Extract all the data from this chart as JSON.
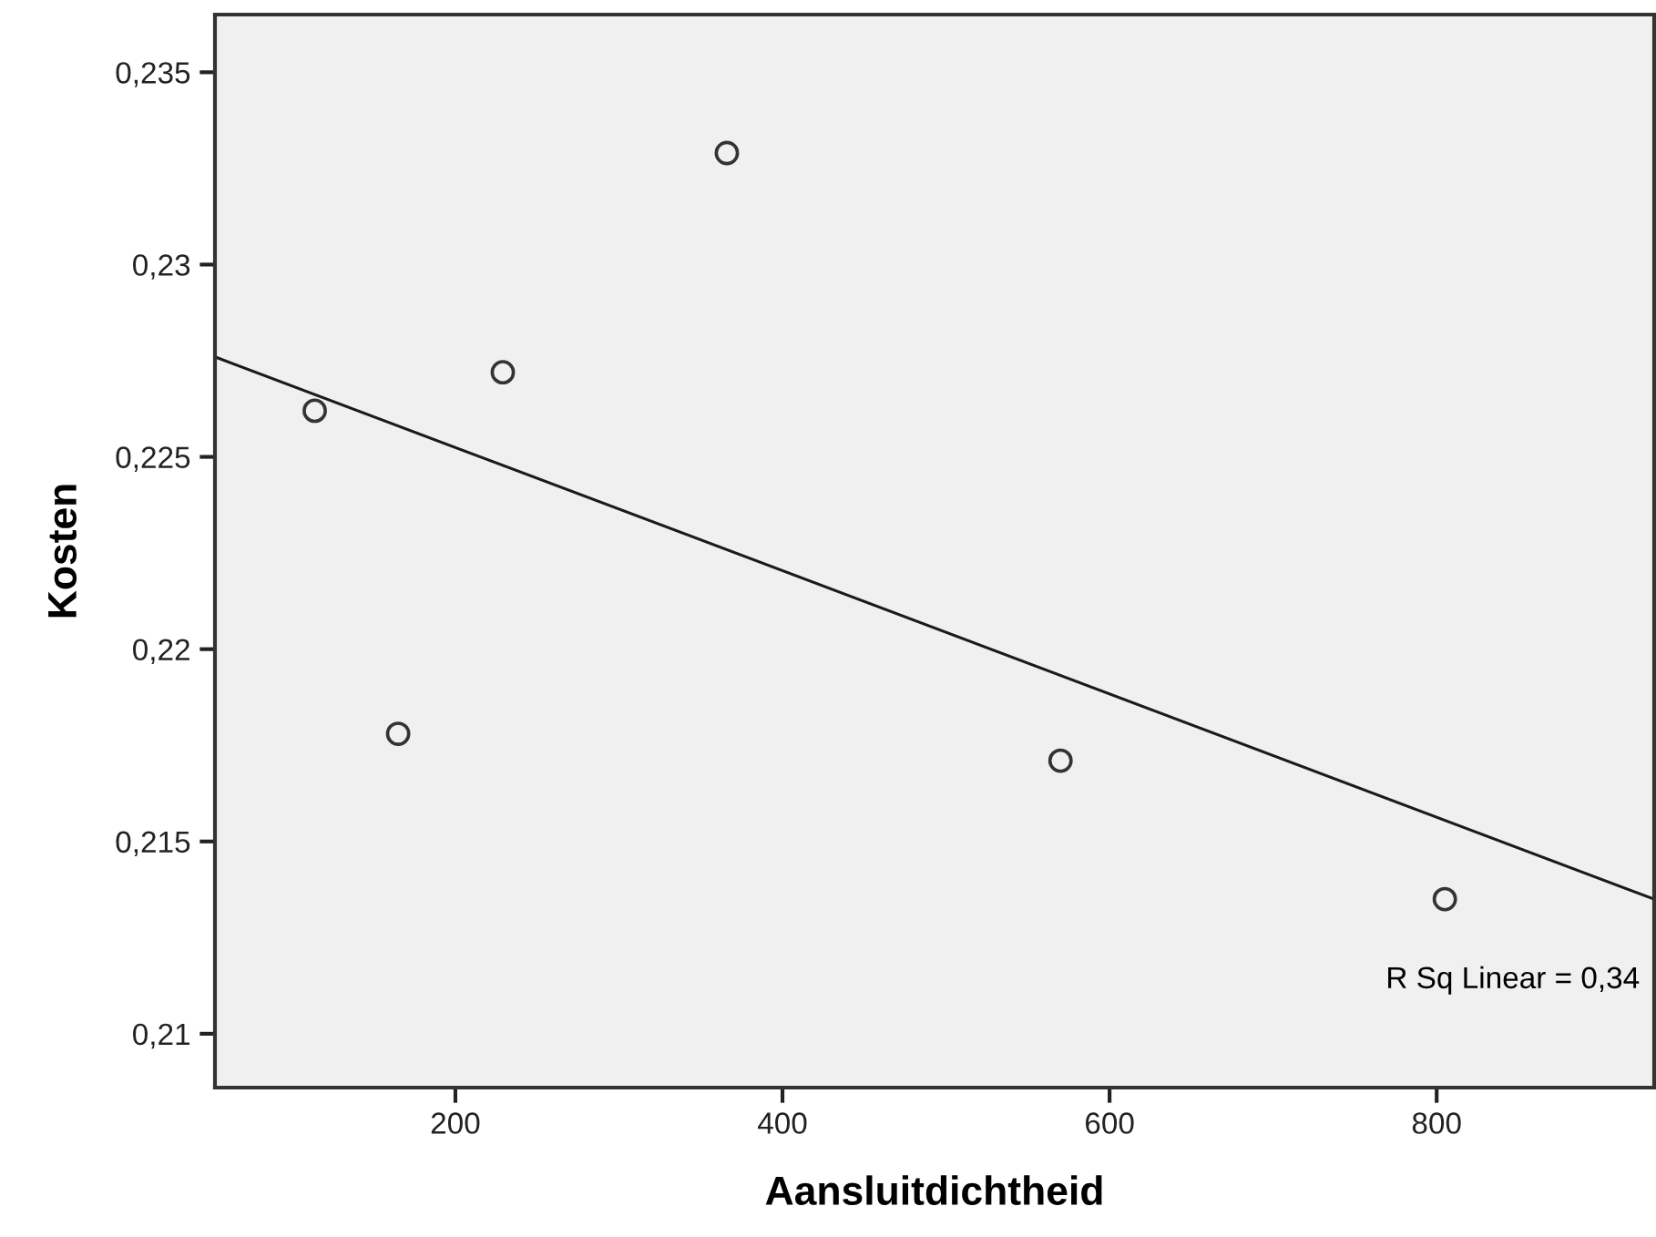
{
  "chart_data": {
    "type": "scatter",
    "xlabel": "Aansluitdichtheid",
    "ylabel": "Kosten",
    "series": [
      {
        "color": "#333333",
        "marker": "circle",
        "x": [
          114,
          165,
          229,
          366,
          570,
          805
        ],
        "values": [
          0.2262,
          0.2178,
          0.2272,
          0.2329,
          0.2171,
          0.2135
        ]
      },
      {
        "type": "line",
        "color": "#1a1a1a",
        "marker": "none",
        "line_style": "solid",
        "x": [
          53,
          933
        ],
        "values": [
          0.2276,
          0.2135
        ]
      }
    ],
    "xlim": [
      53,
      933
    ],
    "xticks": [
      200,
      400,
      600,
      800
    ],
    "ylim": [
      0.2086,
      0.2365
    ],
    "yticks": [
      {
        "value": 0.21,
        "label": "0,21"
      },
      {
        "value": 0.215,
        "label": "0,215"
      },
      {
        "value": 0.22,
        "label": "0,22"
      },
      {
        "value": 0.225,
        "label": "0,225"
      },
      {
        "value": 0.23,
        "label": "0,23"
      },
      {
        "value": 0.235,
        "label": "0,235"
      }
    ],
    "annotations": [
      "R Sq Linear = 0,34"
    ],
    "grid": false,
    "legend": false
  }
}
